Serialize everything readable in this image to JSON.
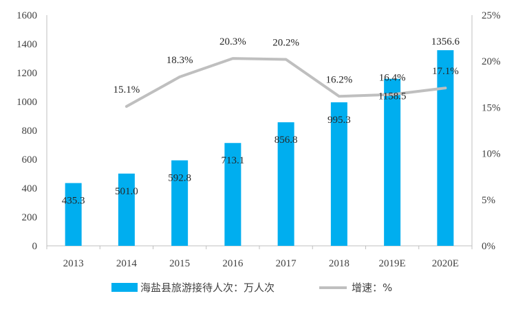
{
  "chart_data": {
    "type": "bar",
    "categories": [
      "2013",
      "2014",
      "2015",
      "2016",
      "2017",
      "2018",
      "2019E",
      "2020E"
    ],
    "series": [
      {
        "name": "海盐县旅游接待人次：万人次",
        "type": "bar",
        "axis": "left",
        "values": [
          435.3,
          501.0,
          592.8,
          713.1,
          856.8,
          995.3,
          1158.5,
          1356.6
        ],
        "labels": [
          "435.3",
          "501.0",
          "592.8",
          "713.1",
          "856.8",
          "995.3",
          "1158.5",
          "1356.6"
        ],
        "color": "#00AEEF"
      },
      {
        "name": "增速：%",
        "type": "line",
        "axis": "right",
        "values": [
          null,
          15.1,
          18.3,
          20.3,
          20.2,
          16.2,
          16.4,
          17.1
        ],
        "labels": [
          "",
          "15.1%",
          "18.3%",
          "20.3%",
          "20.2%",
          "16.2%",
          "16.4%",
          "17.1%"
        ],
        "color": "#BFBFBF"
      }
    ],
    "y_left": {
      "ylim": [
        0,
        1600
      ],
      "ticks": [
        "0",
        "200",
        "400",
        "600",
        "800",
        "1000",
        "1200",
        "1400",
        "1600"
      ]
    },
    "y_right": {
      "ylim": [
        0,
        25
      ],
      "ticks": [
        "0%",
        "5%",
        "10%",
        "15%",
        "20%",
        "25%"
      ]
    },
    "grid": false,
    "legend": "bottom"
  }
}
